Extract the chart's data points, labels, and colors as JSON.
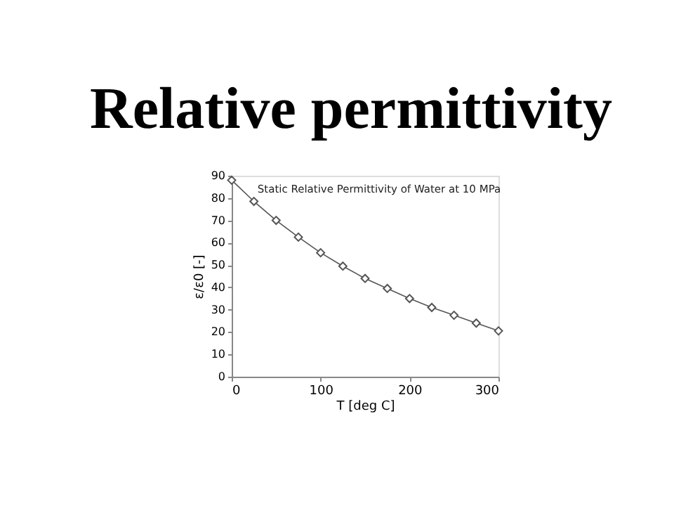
{
  "chart_data": {
    "type": "line",
    "title": "Relative permittivity",
    "subtitle": "Static Relative Permittivity of Water at 10 MPa",
    "xlabel": "T [deg C]",
    "ylabel": "ε/ε0 [-]",
    "x": [
      0,
      25,
      50,
      75,
      100,
      125,
      150,
      175,
      200,
      225,
      250,
      275,
      300
    ],
    "series": [
      {
        "color": "#555555",
        "values": [
          88,
          78.5,
          70,
          62.5,
          55.5,
          49.5,
          44,
          39.5,
          35,
          31,
          27.5,
          24,
          20.5
        ]
      }
    ],
    "xlim": [
      0,
      300
    ],
    "xticks": [
      0,
      100,
      200,
      300
    ],
    "ylim": [
      0,
      90
    ],
    "yticks": [
      0,
      10,
      20,
      30,
      40,
      50,
      60,
      70,
      80,
      90
    ],
    "grid": false,
    "marker": "diamond",
    "line_style": "solid"
  }
}
